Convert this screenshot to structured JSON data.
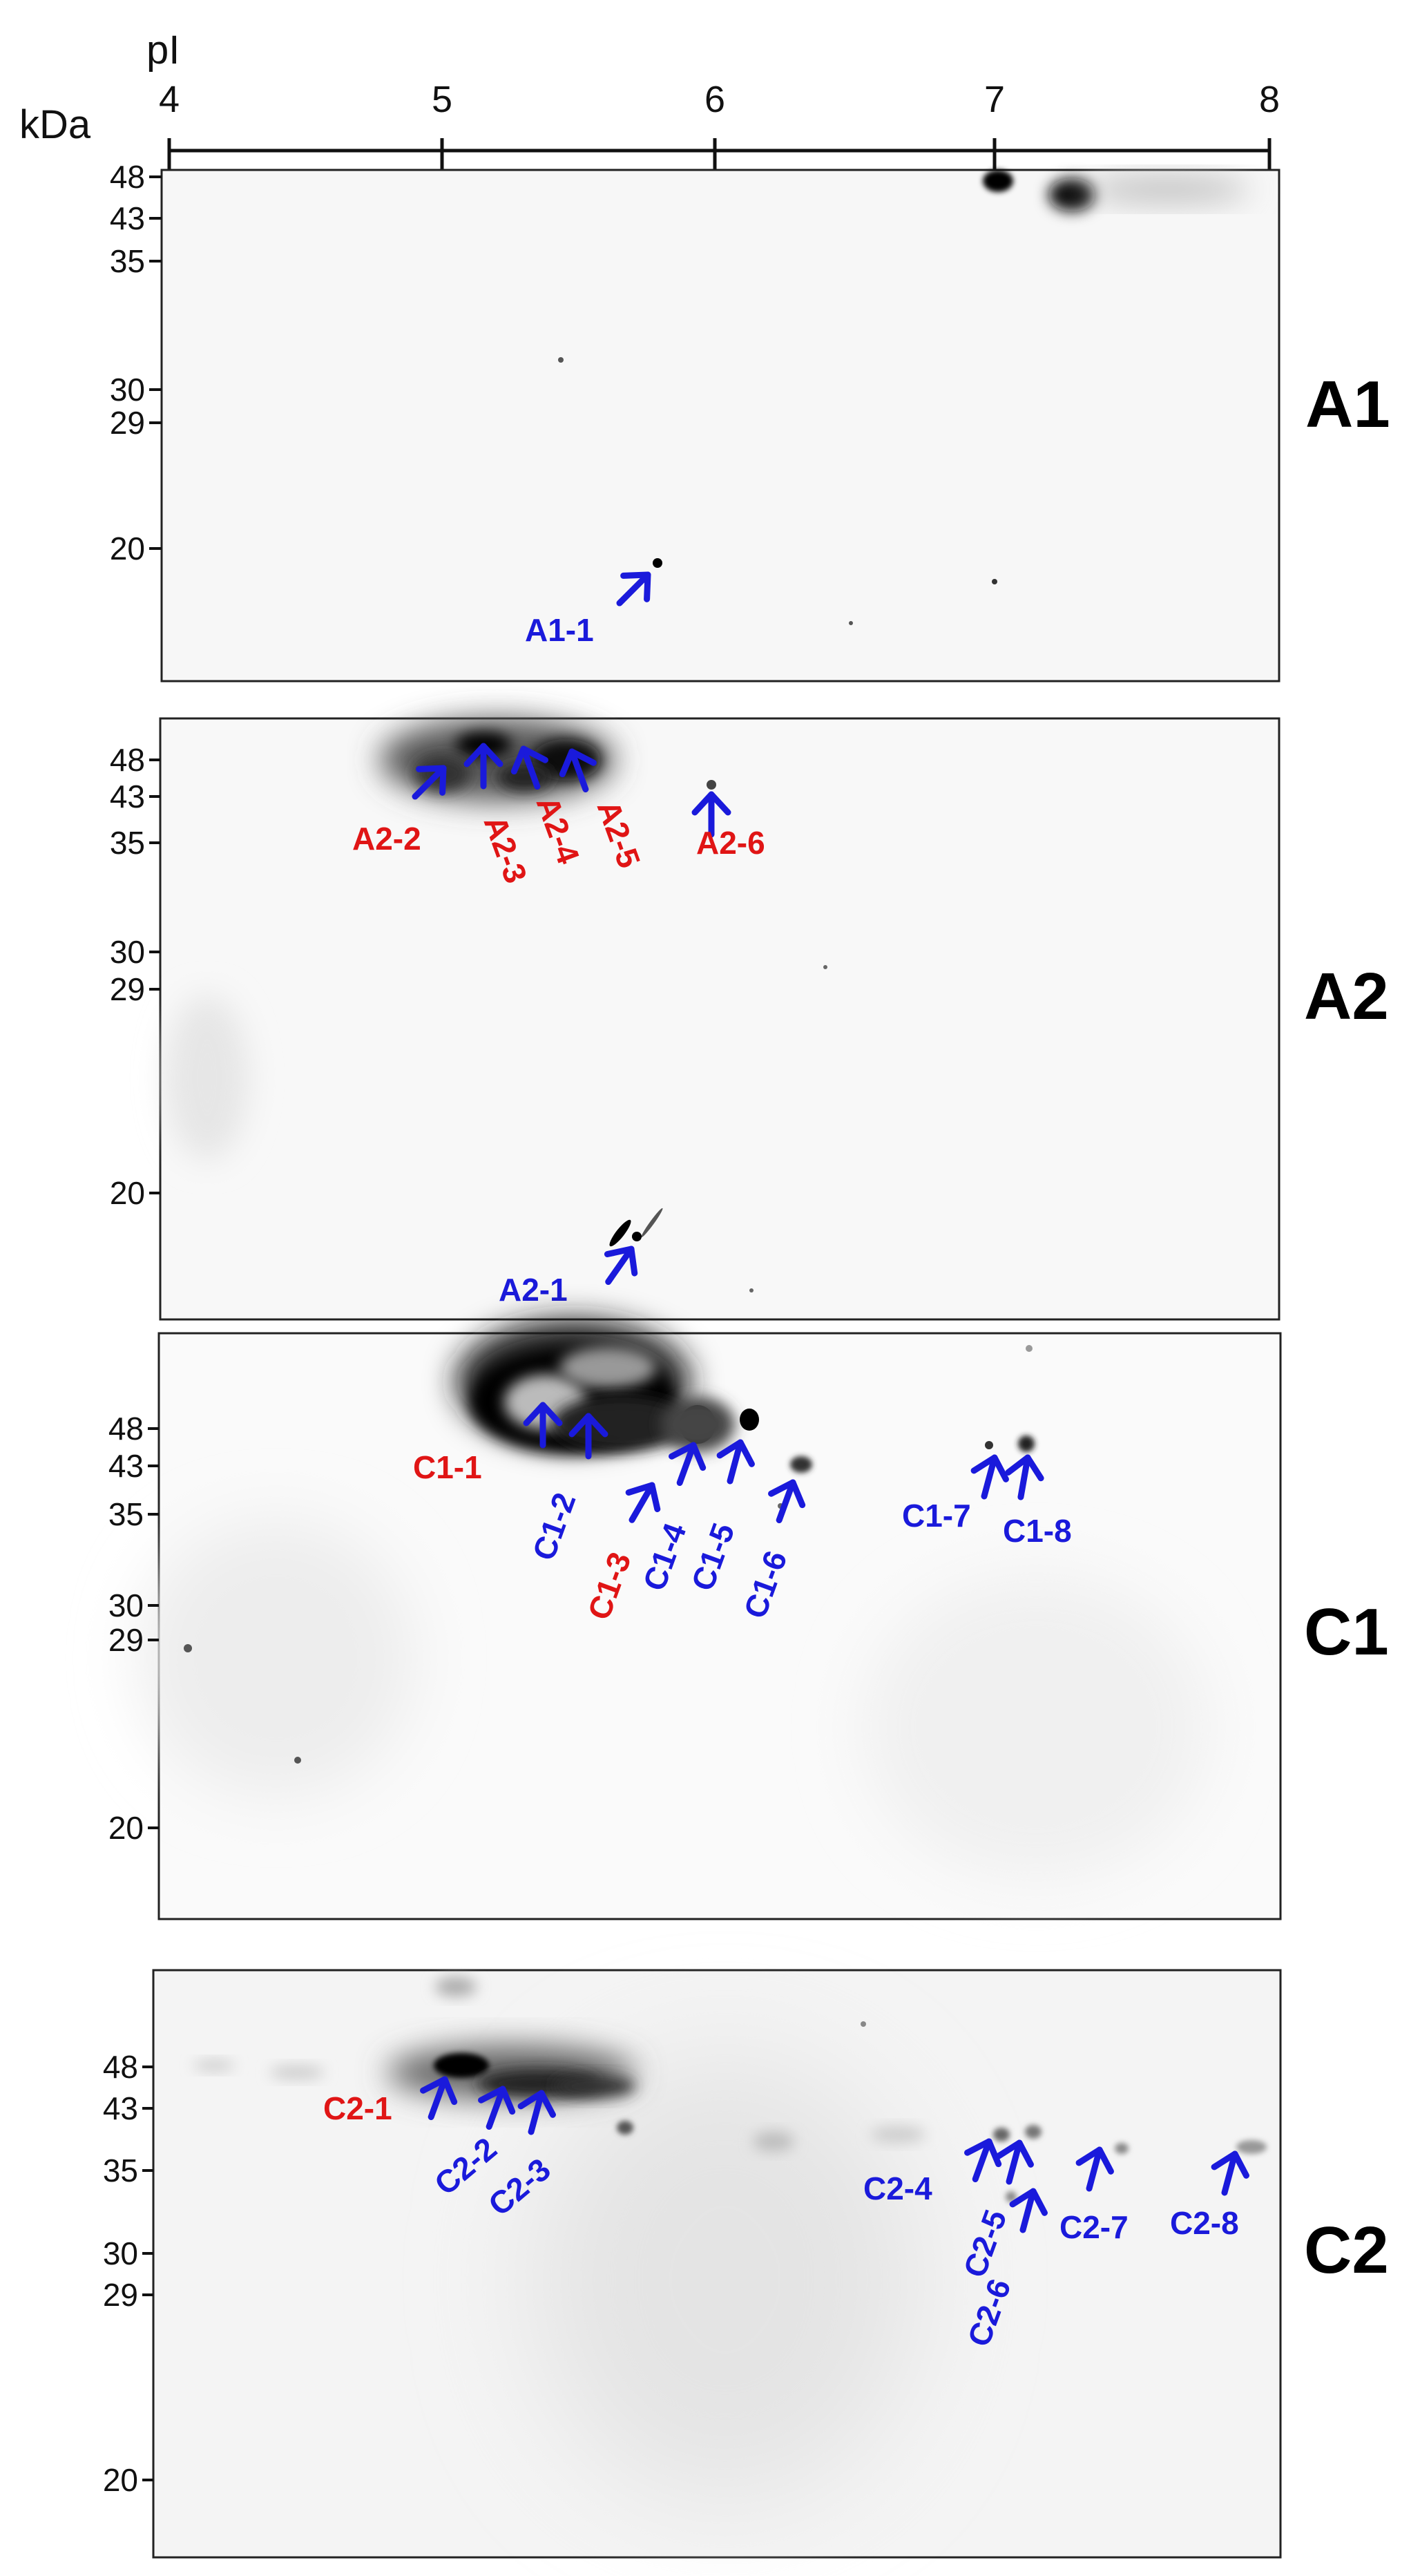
{
  "figure": {
    "ph_axis_label": "pI",
    "mw_axis_label": "kDa",
    "ph_ticks": [
      "4",
      "5",
      "6",
      "7",
      "8"
    ],
    "mw_ticks": [
      "48",
      "43",
      "35",
      "30",
      "29",
      "20"
    ]
  },
  "colors": {
    "blue_label": "#1a1adb",
    "red_label": "#e01515",
    "arrow": "#1a1adb",
    "gel_border": "#222222"
  },
  "panels": [
    {
      "title": "A1",
      "labels": [
        {
          "text": "A1-1",
          "color": "blue"
        }
      ]
    },
    {
      "title": "A2",
      "labels": [
        {
          "text": "A2-2",
          "color": "red"
        },
        {
          "text": "A2-3",
          "color": "red"
        },
        {
          "text": "A2-4",
          "color": "red"
        },
        {
          "text": "A2-5",
          "color": "red"
        },
        {
          "text": "A2-6",
          "color": "red"
        },
        {
          "text": "A2-1",
          "color": "blue"
        }
      ]
    },
    {
      "title": "C1",
      "labels": [
        {
          "text": "C1-1",
          "color": "red"
        },
        {
          "text": "C1-2",
          "color": "blue"
        },
        {
          "text": "C1-3",
          "color": "red"
        },
        {
          "text": "C1-4",
          "color": "blue"
        },
        {
          "text": "C1-5",
          "color": "blue"
        },
        {
          "text": "C1-6",
          "color": "blue"
        },
        {
          "text": "C1-7",
          "color": "blue"
        },
        {
          "text": "C1-8",
          "color": "blue"
        }
      ]
    },
    {
      "title": "C2",
      "labels": [
        {
          "text": "C2-1",
          "color": "red"
        },
        {
          "text": "C2-2",
          "color": "blue"
        },
        {
          "text": "C2-3",
          "color": "blue"
        },
        {
          "text": "C2-4",
          "color": "blue"
        },
        {
          "text": "C2-5",
          "color": "blue"
        },
        {
          "text": "C2-6",
          "color": "blue"
        },
        {
          "text": "C2-7",
          "color": "blue"
        },
        {
          "text": "C2-8",
          "color": "blue"
        }
      ]
    }
  ]
}
